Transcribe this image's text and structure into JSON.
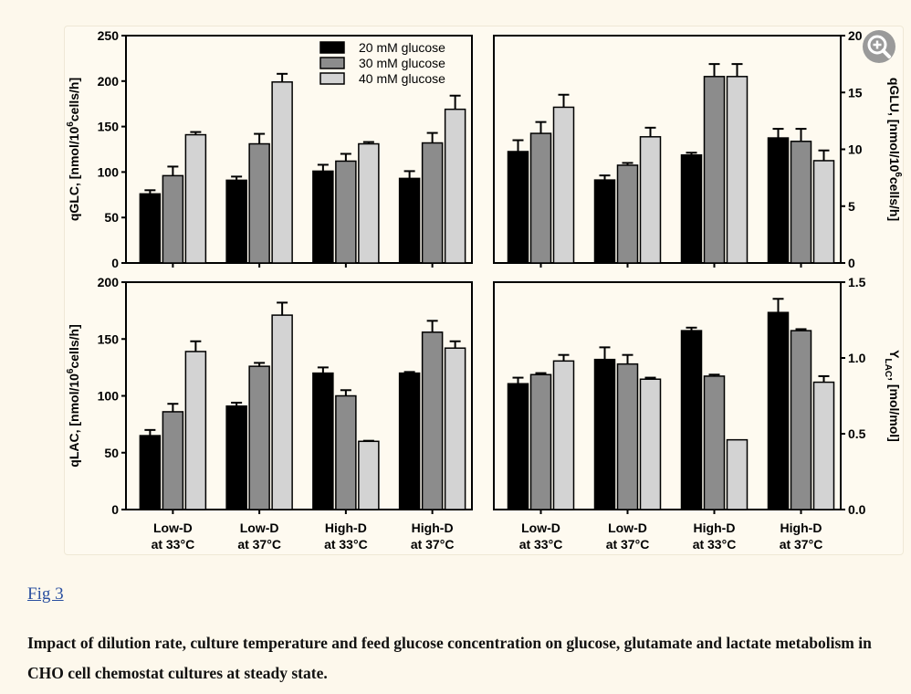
{
  "figure": {
    "link_text": "Fig 3",
    "caption": "Impact of dilution rate, culture temperature and feed glucose concentration on glucose, glutamate and lactate metabolism in CHO cell chemostat cultures at steady state.",
    "zoom_icon": "zoom-in-icon"
  },
  "chart_data": [
    {
      "type": "bar",
      "id": "qGLC",
      "ylabel": "qGLC, [nmol/10^6cells/h]",
      "ylim": [
        0,
        250
      ],
      "yticks": [
        0,
        50,
        100,
        150,
        200,
        250
      ],
      "categories": [
        "Low-D at 33°C",
        "Low-D at 37°C",
        "High-D at 33°C",
        "High-D at 37°C"
      ],
      "series": [
        {
          "name": "20 mM glucose",
          "color": "#000000",
          "values": [
            76,
            91,
            101,
            93
          ],
          "errors": [
            4,
            4,
            7,
            8
          ]
        },
        {
          "name": "30 mM glucose",
          "color": "#8c8c8c",
          "values": [
            96,
            131,
            112,
            132
          ],
          "errors": [
            10,
            11,
            8,
            11
          ]
        },
        {
          "name": "40 mM glucose",
          "color": "#d3d3d3",
          "values": [
            141,
            199,
            131,
            169
          ],
          "errors": [
            3,
            9,
            2,
            15
          ]
        }
      ],
      "legend": "top-right"
    },
    {
      "type": "bar",
      "id": "qGLU",
      "ylabel": "qGLU, [nmol/10^6cells/h]",
      "ylim": [
        0,
        20
      ],
      "yticks": [
        0,
        5,
        10,
        15,
        20
      ],
      "categories": [
        "Low-D at 33°C",
        "Low-D at 37°C",
        "High-D at 33°C",
        "High-D at 37°C"
      ],
      "series": [
        {
          "name": "20 mM glucose",
          "color": "#000000",
          "values": [
            9.8,
            7.3,
            9.5,
            11.0
          ],
          "errors": [
            1.0,
            0.4,
            0.2,
            0.8
          ]
        },
        {
          "name": "30 mM glucose",
          "color": "#8c8c8c",
          "values": [
            11.4,
            8.6,
            16.4,
            10.7
          ],
          "errors": [
            1.0,
            0.2,
            1.1,
            1.1
          ]
        },
        {
          "name": "40 mM glucose",
          "color": "#d3d3d3",
          "values": [
            13.7,
            11.1,
            16.4,
            9.0
          ],
          "errors": [
            1.1,
            0.8,
            1.1,
            0.9
          ]
        }
      ]
    },
    {
      "type": "bar",
      "id": "qLAC",
      "ylabel": "qLAC, [nmol/10^6cells/h]",
      "ylim": [
        0,
        200
      ],
      "yticks": [
        0,
        50,
        100,
        150,
        200
      ],
      "categories": [
        "Low-D at 33°C",
        "Low-D at 37°C",
        "High-D at 33°C",
        "High-D at 37°C"
      ],
      "series": [
        {
          "name": "20 mM glucose",
          "color": "#000000",
          "values": [
            65,
            91,
            120,
            120
          ],
          "errors": [
            5,
            3,
            5,
            1
          ]
        },
        {
          "name": "30 mM glucose",
          "color": "#8c8c8c",
          "values": [
            86,
            126,
            100,
            156
          ],
          "errors": [
            7,
            3,
            5,
            10
          ]
        },
        {
          "name": "40 mM glucose",
          "color": "#d3d3d3",
          "values": [
            139,
            171,
            60,
            142
          ],
          "errors": [
            9,
            11,
            0.5,
            6
          ]
        }
      ]
    },
    {
      "type": "bar",
      "id": "YLAC",
      "ylabel": "YLAC, [mol/mol]",
      "ylim": [
        0,
        1.5
      ],
      "yticks": [
        0.0,
        0.5,
        1.0,
        1.5
      ],
      "categories": [
        "Low-D at 33°C",
        "Low-D at 37°C",
        "High-D at 33°C",
        "High-D at 37°C"
      ],
      "series": [
        {
          "name": "20 mM glucose",
          "color": "#000000",
          "values": [
            0.83,
            0.99,
            1.18,
            1.3
          ],
          "errors": [
            0.04,
            0.08,
            0.02,
            0.09
          ]
        },
        {
          "name": "30 mM glucose",
          "color": "#8c8c8c",
          "values": [
            0.89,
            0.96,
            0.88,
            1.18
          ],
          "errors": [
            0.01,
            0.06,
            0.01,
            0.01
          ]
        },
        {
          "name": "40 mM glucose",
          "color": "#d3d3d3",
          "values": [
            0.98,
            0.86,
            0.46,
            0.84
          ],
          "errors": [
            0.04,
            0.01,
            0.0,
            0.04
          ]
        }
      ]
    }
  ]
}
